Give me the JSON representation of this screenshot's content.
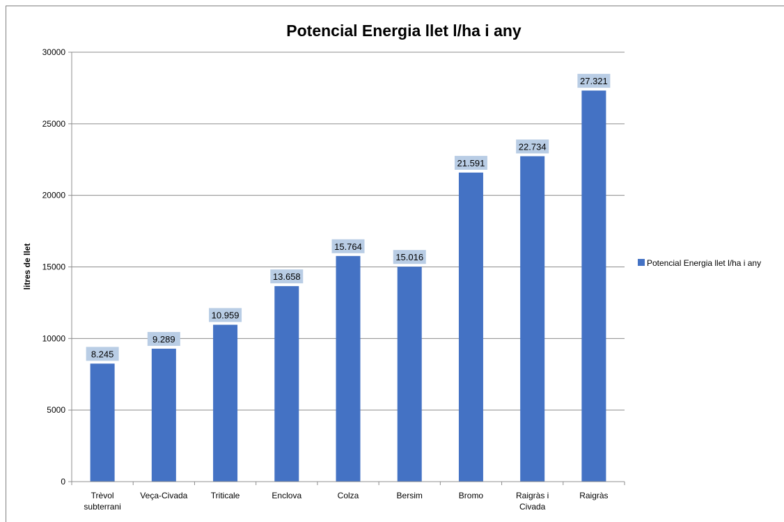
{
  "chart_data": {
    "type": "bar",
    "title": "Potencial Energia llet l/ha i any",
    "xlabel": "",
    "ylabel": "litres de llet",
    "ylim": [
      0,
      30000
    ],
    "yticks": [
      "0",
      "5000",
      "10000",
      "15000",
      "20000",
      "25000",
      "30000"
    ],
    "grid": true,
    "legend_position": "right",
    "categories": [
      [
        "Trèvol",
        "subterrani"
      ],
      [
        "Veça-Civada"
      ],
      [
        "Triticale"
      ],
      [
        "Enclova"
      ],
      [
        "Colza"
      ],
      [
        "Bersim"
      ],
      [
        "Bromo"
      ],
      [
        "Raigràs i",
        "Civada"
      ],
      [
        "Raigràs"
      ]
    ],
    "series": [
      {
        "name": "Potencial Energia llet l/ha i any",
        "color": "#4472C4",
        "values": [
          8245,
          9289,
          10959,
          13658,
          15764,
          15016,
          21591,
          22734,
          27321
        ],
        "labels": [
          "8.245",
          "9.289",
          "10.959",
          "13.658",
          "15.764",
          "15.016",
          "21.591",
          "22.734",
          "27.321"
        ]
      }
    ],
    "data_label_background": "#B9CDE5"
  }
}
